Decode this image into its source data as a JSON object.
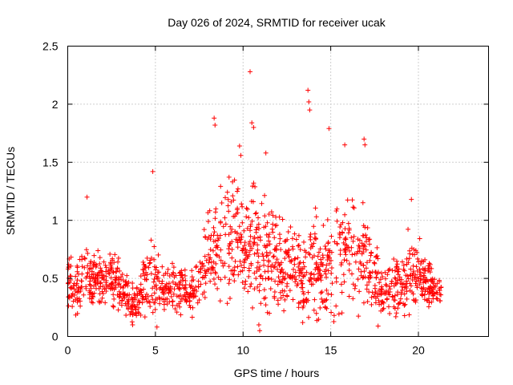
{
  "chart_data": {
    "type": "scatter",
    "title": "Day 026 of 2024, SRMTID for receiver ucak",
    "xlabel": "GPS time / hours",
    "ylabel": "SRMTID / TECUs",
    "xlim": [
      0,
      24
    ],
    "ylim": [
      0,
      2.5
    ],
    "x_ticks": [
      0,
      5,
      10,
      15,
      20
    ],
    "x_tick_labels": [
      "0",
      "5",
      "10",
      "15",
      "20"
    ],
    "y_ticks": [
      0,
      0.5,
      1,
      1.5,
      2,
      2.5
    ],
    "y_tick_labels": [
      "0",
      "0.5",
      "1",
      "1.5",
      "2",
      "2.5"
    ],
    "grid": true,
    "marker": "+",
    "series_color": "#ff0000",
    "data_extent_hours": [
      0,
      21.3
    ],
    "envelope": {
      "x": [
        0,
        0.5,
        1,
        1.5,
        2,
        2.5,
        3,
        3.5,
        4,
        4.5,
        5,
        5.5,
        6,
        6.5,
        7,
        7.5,
        8,
        8.5,
        9,
        9.5,
        10,
        10.5,
        11,
        11.5,
        12,
        12.5,
        13,
        13.5,
        14,
        14.5,
        15,
        15.5,
        16,
        16.5,
        17,
        17.5,
        18,
        18.5,
        19,
        19.5,
        20,
        20.5,
        21
      ],
      "center": [
        0.45,
        0.4,
        0.55,
        0.5,
        0.5,
        0.5,
        0.45,
        0.3,
        0.3,
        0.5,
        0.45,
        0.35,
        0.4,
        0.4,
        0.35,
        0.45,
        0.7,
        0.75,
        0.8,
        0.85,
        0.9,
        0.8,
        0.65,
        0.75,
        0.6,
        0.6,
        0.55,
        0.45,
        0.65,
        0.55,
        0.6,
        0.7,
        0.75,
        0.7,
        0.65,
        0.5,
        0.4,
        0.4,
        0.45,
        0.55,
        0.55,
        0.45,
        0.4
      ],
      "spread": [
        0.2,
        0.2,
        0.3,
        0.2,
        0.2,
        0.2,
        0.2,
        0.15,
        0.15,
        0.3,
        0.3,
        0.15,
        0.2,
        0.2,
        0.15,
        0.2,
        0.35,
        0.4,
        0.4,
        0.45,
        0.5,
        0.45,
        0.35,
        0.4,
        0.35,
        0.3,
        0.3,
        0.3,
        0.5,
        0.35,
        0.4,
        0.45,
        0.45,
        0.4,
        0.4,
        0.25,
        0.2,
        0.2,
        0.25,
        0.3,
        0.3,
        0.2,
        0.15
      ]
    },
    "n_points": 1500,
    "outliers": [
      {
        "x": 10.4,
        "y": 2.28
      },
      {
        "x": 13.7,
        "y": 2.12
      },
      {
        "x": 13.75,
        "y": 2.02
      },
      {
        "x": 13.8,
        "y": 1.95
      },
      {
        "x": 14.9,
        "y": 1.79
      },
      {
        "x": 10.5,
        "y": 1.84
      },
      {
        "x": 10.6,
        "y": 1.8
      },
      {
        "x": 8.35,
        "y": 1.88
      },
      {
        "x": 8.4,
        "y": 1.82
      },
      {
        "x": 16.9,
        "y": 1.7
      },
      {
        "x": 16.95,
        "y": 1.65
      },
      {
        "x": 15.8,
        "y": 1.65
      },
      {
        "x": 9.8,
        "y": 1.64
      },
      {
        "x": 11.3,
        "y": 1.58
      },
      {
        "x": 4.85,
        "y": 1.42
      },
      {
        "x": 19.6,
        "y": 1.18
      },
      {
        "x": 1.1,
        "y": 1.2
      },
      {
        "x": 10.95,
        "y": 0.05
      },
      {
        "x": 10.9,
        "y": 0.1
      },
      {
        "x": 3.7,
        "y": 0.1
      },
      {
        "x": 17.7,
        "y": 0.09
      },
      {
        "x": 13.4,
        "y": 0.12
      }
    ]
  }
}
